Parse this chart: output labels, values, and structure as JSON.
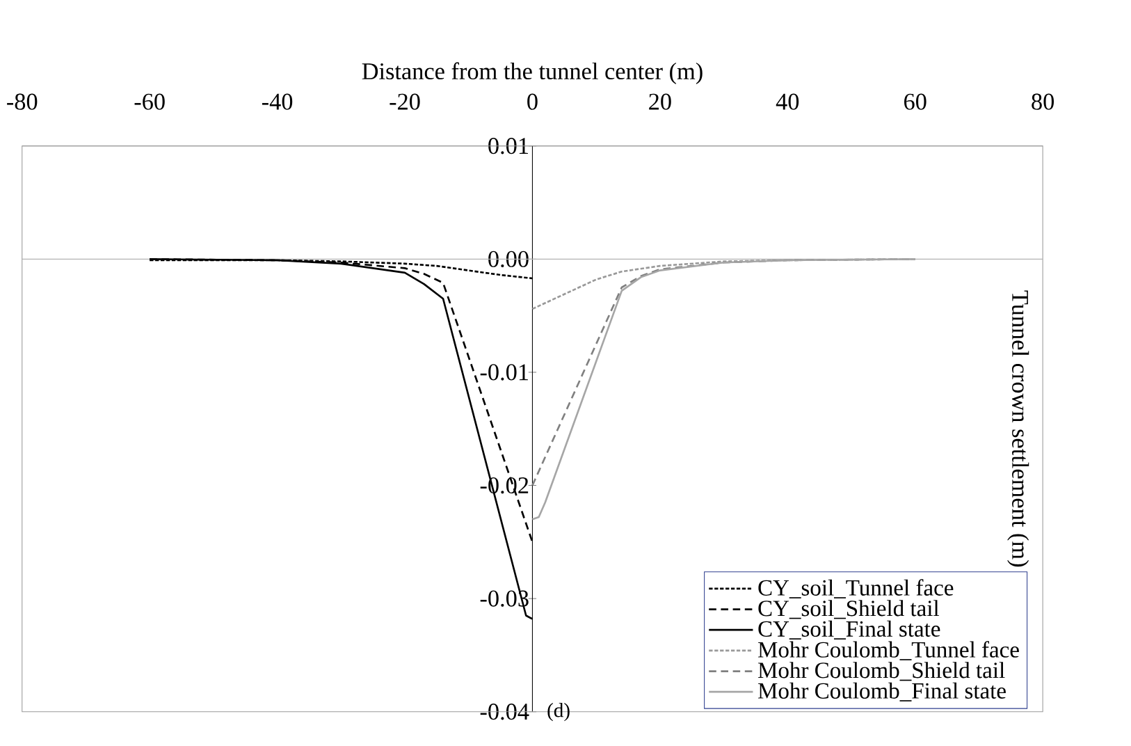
{
  "chart_data": {
    "type": "line",
    "xlabel": "Distance from the tunnel center (m)",
    "ylabel": "Tunnel crown settlement (m)",
    "annotations": [
      "(d)"
    ],
    "xlim": [
      -80,
      80
    ],
    "xticks": [
      -80,
      -60,
      -40,
      -20,
      0,
      20,
      40,
      60,
      80
    ],
    "ylim": [
      -0.04,
      0.01
    ],
    "yticks": [
      {
        "value": 0.01,
        "label": "0.01"
      },
      {
        "value": 0,
        "label": "0.00"
      },
      {
        "value": -0.01,
        "label": "-0.01"
      },
      {
        "value": -0.02,
        "label": "-0.02"
      },
      {
        "value": -0.03,
        "label": "-0.03"
      },
      {
        "value": -0.04,
        "label": "-0.04"
      }
    ],
    "legend": "bottom right",
    "series": [
      {
        "name": "CY_soil_Tunnel face",
        "color": "#000000",
        "line_style": "dotted",
        "x": [
          -60,
          -40,
          -30,
          -20,
          -15,
          -10,
          -5,
          0
        ],
        "values": [
          -0.0001,
          -0.0001,
          -0.0002,
          -0.0004,
          -0.0006,
          -0.001,
          -0.0014,
          -0.0017
        ]
      },
      {
        "name": "CY_soil_Shield tail",
        "color": "#000000",
        "line_style": "dashed",
        "x": [
          -60,
          -40,
          -30,
          -20,
          -17,
          -14,
          0
        ],
        "values": [
          0,
          -0.0001,
          -0.0003,
          -0.0008,
          -0.0013,
          -0.0021,
          -0.025
        ]
      },
      {
        "name": "CY_soil_Final state",
        "color": "#000000",
        "line_style": "solid",
        "x": [
          -60,
          -40,
          -30,
          -20,
          -17,
          -14,
          -1,
          0
        ],
        "values": [
          0,
          -0.0001,
          -0.0004,
          -0.0012,
          -0.0022,
          -0.0035,
          -0.0315,
          -0.0318
        ]
      },
      {
        "name": "Mohr Coulomb_Tunnel face",
        "color": "#999999",
        "line_style": "dotted",
        "x": [
          0,
          5,
          10,
          14,
          20,
          30,
          40,
          60
        ],
        "values": [
          -0.0044,
          -0.0031,
          -0.0018,
          -0.0011,
          -0.0006,
          -0.0002,
          -0.0001,
          0
        ]
      },
      {
        "name": "Mohr Coulomb_Shield tail",
        "color": "#808080",
        "line_style": "dashed",
        "x": [
          0,
          14,
          17,
          20,
          30,
          40,
          60
        ],
        "values": [
          -0.02,
          -0.0025,
          -0.0015,
          -0.0009,
          -0.0003,
          -0.0001,
          0
        ]
      },
      {
        "name": "Mohr Coulomb_Final state",
        "color": "#a6a6a6",
        "line_style": "solid",
        "x": [
          0,
          1,
          2,
          14,
          17,
          20,
          30,
          40,
          60
        ],
        "values": [
          -0.023,
          -0.0228,
          -0.0215,
          -0.0028,
          -0.0016,
          -0.001,
          -0.0003,
          -0.0001,
          0
        ]
      }
    ]
  }
}
